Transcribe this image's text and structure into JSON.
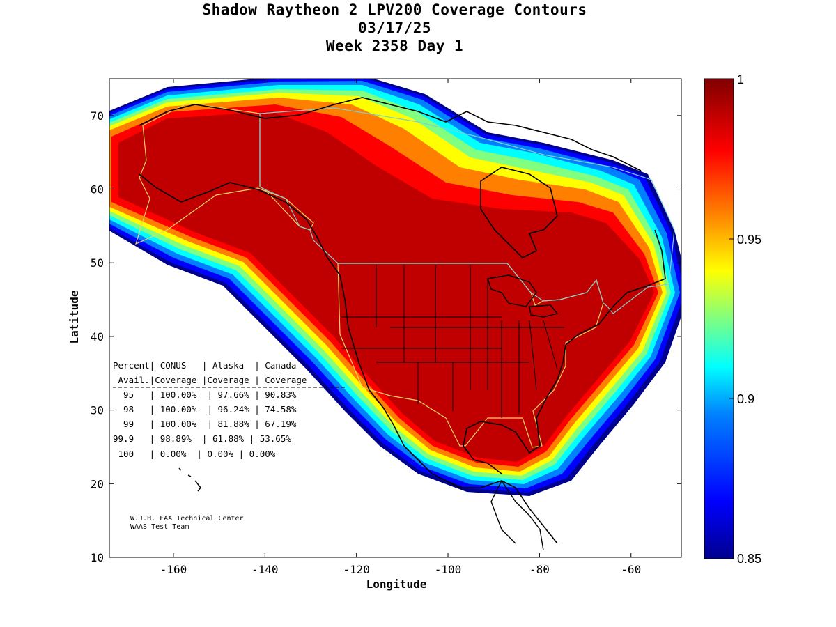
{
  "title": {
    "line1": "Shadow Raytheon 2 LPV200 Coverage Contours",
    "line2": "03/17/25",
    "line3": "Week 2358 Day 1"
  },
  "axes": {
    "xlabel": "Longitude",
    "ylabel": "Latitude",
    "xticks": [
      "-160",
      "-140",
      "-120",
      "-100",
      "-80",
      "-60"
    ],
    "yticks": [
      "70",
      "60",
      "50",
      "40",
      "30",
      "20",
      "10"
    ],
    "xlim": [
      -174,
      -49
    ],
    "ylim": [
      10,
      75
    ]
  },
  "colorbar": {
    "labels": [
      "1",
      "0.95",
      "0.9",
      "0.85"
    ],
    "range": [
      0.85,
      1.0
    ],
    "colors": [
      "#00008f",
      "#0000ff",
      "#0080ff",
      "#00ffff",
      "#80ff80",
      "#ffff00",
      "#ff8000",
      "#ff0000",
      "#800000"
    ]
  },
  "colors": {
    "core": "#c00000",
    "border_black": "#000000",
    "us_outline": "#e8d860",
    "canada_outline": "#7fd0d0"
  },
  "coverage_table": {
    "header1": "Percent| CONUS   | Alaska  | Canada",
    "header2": " Avail.|Coverage |Coverage | Coverage",
    "rows": [
      "  95   | 100.00%  | 97.66% | 90.83%",
      "  98   | 100.00%  | 96.24% | 74.58%",
      "  99   | 100.00%  | 81.88% | 67.19%",
      "99.9   | 98.89%  | 61.88% | 53.65%",
      " 100   | 0.00%  | 0.00% | 0.00%"
    ]
  },
  "credits": {
    "line1": "W.J.H. FAA Technical Center",
    "line2": "WAAS Test Team"
  },
  "chart_data": {
    "type": "heatmap",
    "title": "Shadow Raytheon 2 LPV200 Coverage Contours",
    "xlabel": "Longitude",
    "ylabel": "Latitude",
    "xlim": [
      -174,
      -49
    ],
    "ylim": [
      10,
      75
    ],
    "colorbar_range": [
      0.85,
      1.0
    ]
  }
}
